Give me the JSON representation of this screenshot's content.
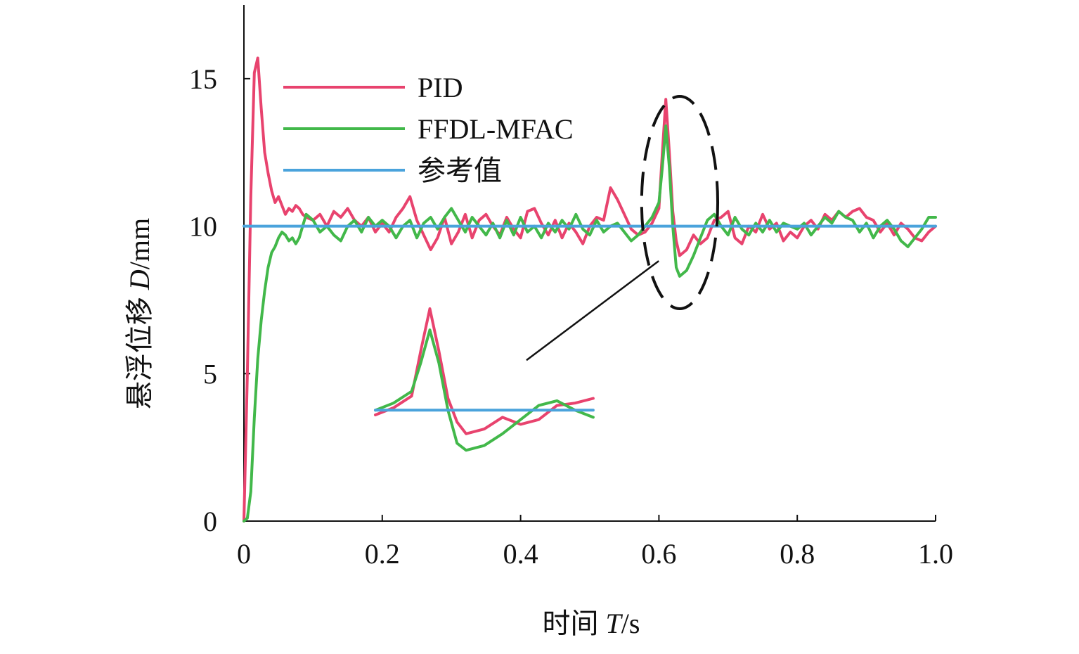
{
  "chart_data": {
    "type": "line",
    "xlabel_prefix": "时间 ",
    "xlabel_var": "T",
    "xlabel_unit": "/s",
    "ylabel_prefix": "悬浮位移 ",
    "ylabel_var": "D",
    "ylabel_unit": "/mm",
    "xlim": [
      0,
      1.0
    ],
    "ylim": [
      0,
      17.5
    ],
    "x_ticks": [
      0,
      0.2,
      0.4,
      0.6,
      0.8,
      1.0
    ],
    "x_tick_labels": [
      "0",
      "0.2",
      "0.4",
      "0.6",
      "0.8",
      "1.0"
    ],
    "y_ticks": [
      0,
      5,
      10,
      15
    ],
    "y_tick_labels": [
      "0",
      "5",
      "10",
      "15"
    ],
    "grid": false,
    "legend_position": "upper-left",
    "series": [
      {
        "name": "PID",
        "color": "#e8436e",
        "x": [
          0,
          0.005,
          0.01,
          0.015,
          0.02,
          0.025,
          0.03,
          0.035,
          0.04,
          0.045,
          0.05,
          0.055,
          0.06,
          0.065,
          0.07,
          0.075,
          0.08,
          0.085,
          0.09,
          0.1,
          0.11,
          0.12,
          0.13,
          0.14,
          0.15,
          0.16,
          0.17,
          0.18,
          0.19,
          0.2,
          0.21,
          0.22,
          0.23,
          0.24,
          0.25,
          0.26,
          0.27,
          0.28,
          0.29,
          0.3,
          0.31,
          0.32,
          0.33,
          0.34,
          0.35,
          0.36,
          0.37,
          0.38,
          0.39,
          0.4,
          0.41,
          0.42,
          0.43,
          0.44,
          0.45,
          0.46,
          0.47,
          0.48,
          0.49,
          0.5,
          0.51,
          0.52,
          0.53,
          0.54,
          0.55,
          0.56,
          0.57,
          0.58,
          0.59,
          0.6,
          0.605,
          0.61,
          0.615,
          0.62,
          0.625,
          0.63,
          0.64,
          0.65,
          0.66,
          0.67,
          0.68,
          0.69,
          0.7,
          0.71,
          0.72,
          0.73,
          0.74,
          0.75,
          0.76,
          0.77,
          0.78,
          0.79,
          0.8,
          0.81,
          0.82,
          0.83,
          0.84,
          0.85,
          0.86,
          0.87,
          0.88,
          0.89,
          0.9,
          0.91,
          0.92,
          0.93,
          0.94,
          0.95,
          0.96,
          0.97,
          0.98,
          0.99,
          1.0
        ],
        "y": [
          0,
          5.0,
          11.0,
          15.2,
          15.7,
          14.0,
          12.5,
          11.8,
          11.2,
          10.8,
          11.0,
          10.7,
          10.4,
          10.6,
          10.5,
          10.7,
          10.6,
          10.4,
          10.3,
          10.2,
          10.4,
          10.0,
          10.5,
          10.3,
          10.6,
          10.2,
          10.0,
          10.3,
          9.8,
          10.1,
          9.8,
          10.3,
          10.6,
          11.0,
          10.2,
          9.7,
          9.2,
          9.6,
          10.3,
          9.4,
          9.8,
          10.4,
          9.6,
          10.2,
          10.4,
          10.0,
          9.7,
          10.3,
          9.9,
          9.6,
          10.5,
          10.6,
          10.1,
          9.7,
          10.2,
          9.6,
          10.1,
          9.8,
          9.4,
          10.0,
          10.3,
          10.2,
          11.3,
          10.9,
          10.4,
          9.9,
          9.7,
          9.8,
          10.1,
          10.6,
          12.5,
          14.3,
          12.5,
          10.5,
          9.5,
          9.0,
          9.2,
          9.7,
          9.4,
          9.6,
          10.2,
          10.3,
          10.5,
          9.6,
          9.4,
          10.0,
          9.8,
          10.4,
          9.9,
          10.1,
          9.5,
          9.8,
          9.6,
          10.0,
          10.2,
          9.9,
          10.4,
          10.2,
          10.5,
          10.3,
          10.5,
          10.6,
          10.3,
          10.2,
          9.8,
          10.1,
          9.7,
          10.1,
          9.9,
          9.6,
          9.5,
          9.8,
          10.0
        ]
      },
      {
        "name": "FFDL-MFAC",
        "color": "#42b84a",
        "x": [
          0,
          0.005,
          0.01,
          0.015,
          0.02,
          0.025,
          0.03,
          0.035,
          0.04,
          0.045,
          0.05,
          0.055,
          0.06,
          0.065,
          0.07,
          0.075,
          0.08,
          0.085,
          0.09,
          0.1,
          0.11,
          0.12,
          0.13,
          0.14,
          0.15,
          0.16,
          0.17,
          0.18,
          0.19,
          0.2,
          0.21,
          0.22,
          0.23,
          0.24,
          0.25,
          0.26,
          0.27,
          0.28,
          0.29,
          0.3,
          0.31,
          0.32,
          0.33,
          0.34,
          0.35,
          0.36,
          0.37,
          0.38,
          0.39,
          0.4,
          0.41,
          0.42,
          0.43,
          0.44,
          0.45,
          0.46,
          0.47,
          0.48,
          0.49,
          0.5,
          0.51,
          0.52,
          0.53,
          0.54,
          0.55,
          0.56,
          0.57,
          0.58,
          0.59,
          0.6,
          0.605,
          0.61,
          0.615,
          0.62,
          0.625,
          0.63,
          0.64,
          0.65,
          0.66,
          0.67,
          0.68,
          0.69,
          0.7,
          0.71,
          0.72,
          0.73,
          0.74,
          0.75,
          0.76,
          0.77,
          0.78,
          0.79,
          0.8,
          0.81,
          0.82,
          0.83,
          0.84,
          0.85,
          0.86,
          0.87,
          0.88,
          0.89,
          0.9,
          0.91,
          0.92,
          0.93,
          0.94,
          0.95,
          0.96,
          0.97,
          0.98,
          0.99,
          1.0
        ],
        "y": [
          0,
          0.1,
          1.0,
          3.5,
          5.5,
          6.8,
          7.8,
          8.6,
          9.1,
          9.3,
          9.6,
          9.8,
          9.7,
          9.5,
          9.6,
          9.4,
          9.6,
          10.0,
          10.4,
          10.2,
          9.8,
          10.0,
          9.7,
          9.5,
          10.0,
          10.2,
          9.8,
          10.3,
          10.0,
          10.2,
          10.0,
          9.6,
          10.0,
          10.2,
          9.6,
          10.1,
          10.3,
          9.9,
          10.3,
          10.6,
          10.2,
          9.8,
          10.3,
          10.0,
          9.7,
          10.1,
          9.6,
          10.2,
          9.7,
          10.3,
          9.8,
          10.0,
          9.6,
          10.1,
          9.8,
          10.2,
          9.9,
          10.4,
          9.9,
          9.7,
          10.2,
          9.8,
          10.0,
          10.1,
          9.8,
          9.5,
          9.7,
          10.0,
          10.3,
          10.8,
          12.0,
          13.4,
          12.0,
          10.0,
          8.6,
          8.3,
          8.5,
          9.0,
          9.6,
          10.2,
          10.4,
          10.0,
          9.7,
          10.3,
          9.9,
          9.7,
          10.1,
          9.8,
          10.2,
          9.8,
          10.1,
          10.0,
          9.9,
          10.1,
          9.7,
          10.0,
          10.3,
          10.1,
          10.5,
          10.3,
          10.2,
          9.8,
          10.1,
          9.6,
          10.0,
          10.2,
          9.9,
          9.5,
          9.3,
          9.6,
          9.9,
          10.3,
          10.3
        ]
      },
      {
        "name": "参考值",
        "color": "#4aa3dc",
        "x": [
          0,
          1.0
        ],
        "y": [
          10,
          10
        ]
      }
    ],
    "annotation": {
      "type": "zoom-inset",
      "ellipse_center": [
        0.63,
        10.8
      ],
      "ellipse_radii": [
        0.055,
        3.6
      ],
      "inset_x_range": [
        0.58,
        0.7
      ],
      "inset_y_range": [
        7.8,
        14.8
      ],
      "inset_data_box": {
        "x0": 0.19,
        "x1": 0.505,
        "y0": 2.0,
        "y1": 7.6
      }
    }
  }
}
